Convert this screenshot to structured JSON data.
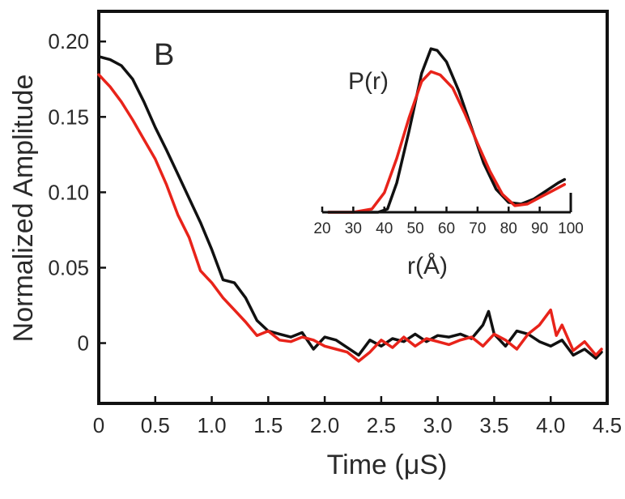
{
  "chart_data": [
    {
      "type": "line",
      "panel_label": "B",
      "xlabel": "Time (μS)",
      "ylabel": "Normalized Amplitude",
      "xlim": [
        0,
        4.5
      ],
      "ylim": [
        -0.04,
        0.22
      ],
      "x_ticks": [
        0,
        0.5,
        1.0,
        1.5,
        2.0,
        2.5,
        3.0,
        3.5,
        4.0,
        4.5
      ],
      "x_tick_labels": [
        "0",
        "0.5",
        "1.0",
        "1.5",
        "2.0",
        "2.5",
        "3.0",
        "3.5",
        "4.0",
        "4.5"
      ],
      "y_ticks": [
        0,
        0.05,
        0.1,
        0.15,
        0.2
      ],
      "y_tick_labels": [
        "0",
        "0.05",
        "0.10",
        "0.15",
        "0.20"
      ],
      "grid": false,
      "series": [
        {
          "color": "#111111",
          "x": [
            0,
            0.1,
            0.2,
            0.3,
            0.4,
            0.5,
            0.6,
            0.7,
            0.8,
            0.9,
            1.0,
            1.1,
            1.2,
            1.3,
            1.4,
            1.5,
            1.6,
            1.7,
            1.8,
            1.9,
            2.0,
            2.1,
            2.2,
            2.3,
            2.4,
            2.5,
            2.6,
            2.7,
            2.8,
            2.9,
            3.0,
            3.1,
            3.2,
            3.3,
            3.4,
            3.45,
            3.5,
            3.6,
            3.7,
            3.8,
            3.9,
            4.0,
            4.1,
            4.2,
            4.3,
            4.4,
            4.45
          ],
          "y": [
            0.19,
            0.188,
            0.184,
            0.175,
            0.16,
            0.143,
            0.128,
            0.112,
            0.096,
            0.08,
            0.062,
            0.042,
            0.04,
            0.03,
            0.015,
            0.008,
            0.006,
            0.004,
            0.007,
            -0.004,
            0.004,
            0.002,
            -0.003,
            -0.008,
            0.002,
            -0.002,
            0.003,
            0.001,
            0.006,
            0.001,
            0.005,
            0.004,
            0.006,
            0.003,
            0.012,
            0.021,
            0.006,
            -0.002,
            0.008,
            0.006,
            0.001,
            -0.002,
            0.002,
            -0.008,
            -0.004,
            -0.01,
            -0.006
          ]
        },
        {
          "color": "#e8231a",
          "x": [
            0,
            0.1,
            0.2,
            0.3,
            0.4,
            0.5,
            0.6,
            0.7,
            0.8,
            0.9,
            1.0,
            1.1,
            1.2,
            1.3,
            1.4,
            1.5,
            1.6,
            1.7,
            1.8,
            1.9,
            2.0,
            2.1,
            2.2,
            2.3,
            2.4,
            2.5,
            2.6,
            2.7,
            2.8,
            2.9,
            3.0,
            3.1,
            3.2,
            3.3,
            3.4,
            3.5,
            3.6,
            3.7,
            3.8,
            3.9,
            4.0,
            4.05,
            4.1,
            4.2,
            4.3,
            4.4,
            4.45
          ],
          "y": [
            0.178,
            0.17,
            0.16,
            0.148,
            0.135,
            0.122,
            0.105,
            0.085,
            0.07,
            0.048,
            0.04,
            0.03,
            0.022,
            0.014,
            0.005,
            0.008,
            0.002,
            0.001,
            0.004,
            0.002,
            -0.002,
            -0.004,
            -0.006,
            -0.012,
            -0.006,
            0.002,
            -0.003,
            0.004,
            -0.002,
            0.003,
            0.001,
            -0.001,
            0.002,
            0.004,
            -0.002,
            0.006,
            0.002,
            -0.004,
            0.006,
            0.012,
            0.022,
            0.005,
            0.012,
            -0.005,
            0.001,
            -0.008,
            -0.004
          ]
        }
      ]
    },
    {
      "type": "line",
      "title": "P(r)",
      "xlabel": "r(Å)",
      "xlim": [
        20,
        100
      ],
      "ylim": [
        0,
        1.1
      ],
      "x_ticks": [
        20,
        30,
        40,
        50,
        60,
        70,
        80,
        90,
        100
      ],
      "x_tick_labels": [
        "20",
        "30",
        "40",
        "50",
        "60",
        "70",
        "80",
        "90",
        "100"
      ],
      "grid": false,
      "series": [
        {
          "color": "#111111",
          "x": [
            22,
            30,
            38,
            41,
            44,
            48,
            52,
            55,
            57,
            60,
            64,
            68,
            72,
            76,
            80,
            84,
            88,
            92,
            96,
            98
          ],
          "y": [
            0,
            0,
            0,
            0.02,
            0.18,
            0.5,
            0.85,
            1.0,
            0.99,
            0.92,
            0.74,
            0.52,
            0.3,
            0.14,
            0.06,
            0.05,
            0.08,
            0.13,
            0.18,
            0.2
          ]
        },
        {
          "color": "#e8231a",
          "x": [
            22,
            30,
            36,
            40,
            44,
            48,
            52,
            55,
            58,
            62,
            66,
            70,
            74,
            78,
            82,
            86,
            90,
            94,
            98
          ],
          "y": [
            0,
            0,
            0.02,
            0.12,
            0.33,
            0.58,
            0.8,
            0.86,
            0.84,
            0.76,
            0.6,
            0.42,
            0.25,
            0.11,
            0.04,
            0.05,
            0.09,
            0.13,
            0.17
          ]
        }
      ]
    }
  ]
}
